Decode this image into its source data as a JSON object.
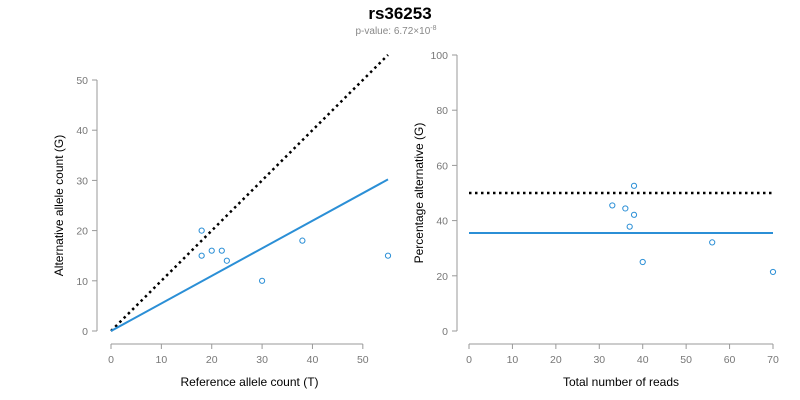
{
  "chart_title": "rs36253",
  "subtitle": {
    "prefix": "p-value: 6.72×10",
    "exponent": "-8"
  },
  "colors": {
    "points": "#2b8fd6",
    "fit_line": "#2b8fd6",
    "reference_line": "#000000"
  },
  "chart_data": [
    {
      "type": "scatter",
      "xlabel": "Reference allele count (T)",
      "ylabel": "Alternative allele count (G)",
      "xlim": [
        0,
        55
      ],
      "ylim": [
        0,
        50
      ],
      "xticks": [
        0,
        10,
        20,
        30,
        40,
        50
      ],
      "yticks": [
        0,
        10,
        20,
        30,
        40,
        50
      ],
      "points": [
        {
          "x": 18,
          "y": 20
        },
        {
          "x": 18,
          "y": 15
        },
        {
          "x": 20,
          "y": 16
        },
        {
          "x": 22,
          "y": 16
        },
        {
          "x": 23,
          "y": 14
        },
        {
          "x": 30,
          "y": 10
        },
        {
          "x": 38,
          "y": 18
        },
        {
          "x": 55,
          "y": 15
        }
      ],
      "lines": [
        {
          "style": "dotted",
          "color": "#000000",
          "x": [
            0,
            55
          ],
          "y": [
            0,
            55
          ]
        },
        {
          "style": "solid",
          "color": "#2b8fd6",
          "x": [
            0,
            55
          ],
          "y": [
            0,
            30.2
          ]
        }
      ],
      "grid": false
    },
    {
      "type": "scatter",
      "xlabel": "Total number of reads",
      "ylabel": "Percentage alternative (G)",
      "xlim": [
        0,
        70
      ],
      "ylim": [
        0,
        100
      ],
      "xticks": [
        0,
        10,
        20,
        30,
        40,
        50,
        60,
        70
      ],
      "yticks": [
        0,
        20,
        40,
        60,
        80,
        100
      ],
      "points": [
        {
          "x": 33,
          "y": 45.5
        },
        {
          "x": 36,
          "y": 44.4
        },
        {
          "x": 37,
          "y": 37.8
        },
        {
          "x": 38,
          "y": 52.6
        },
        {
          "x": 38,
          "y": 42.1
        },
        {
          "x": 40,
          "y": 25
        },
        {
          "x": 56,
          "y": 32.1
        },
        {
          "x": 70,
          "y": 21.4
        }
      ],
      "lines": [
        {
          "style": "dotted",
          "color": "#000000",
          "x": [
            0,
            70
          ],
          "y": [
            50,
            50
          ]
        },
        {
          "style": "solid",
          "color": "#2b8fd6",
          "x": [
            0,
            70
          ],
          "y": [
            35.5,
            35.5
          ]
        }
      ],
      "grid": false
    }
  ]
}
